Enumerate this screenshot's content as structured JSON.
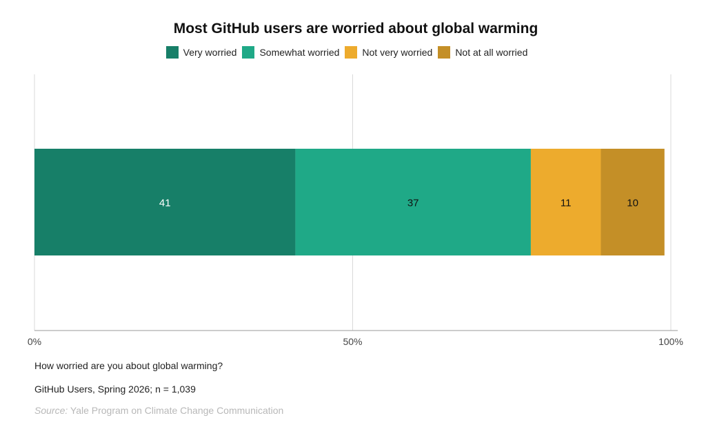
{
  "chart_data": {
    "type": "bar",
    "orientation": "horizontal",
    "stacked": true,
    "title": "Most GitHub users are worried about global warming",
    "categories": [
      ""
    ],
    "series": [
      {
        "name": "Very worried",
        "values": [
          41
        ],
        "color": "#177f68"
      },
      {
        "name": "Somewhat worried",
        "values": [
          37
        ],
        "color": "#1fa987"
      },
      {
        "name": "Not very worried",
        "values": [
          11
        ],
        "color": "#edab2d"
      },
      {
        "name": "Not at all worried",
        "values": [
          10
        ],
        "color": "#c48f27"
      }
    ],
    "xlim": [
      0,
      100
    ],
    "xticks": [
      0,
      50,
      100
    ],
    "xtick_labels": [
      "0%",
      "50%",
      "100%"
    ],
    "legend_position": "top",
    "grid": true
  },
  "footer": {
    "question": "How worried are you about global warming?",
    "sample": "GitHub Users, Spring 2026; n = 1,039",
    "source_label": "Source:",
    "source_text": "Yale Program on Climate Change Communication"
  }
}
